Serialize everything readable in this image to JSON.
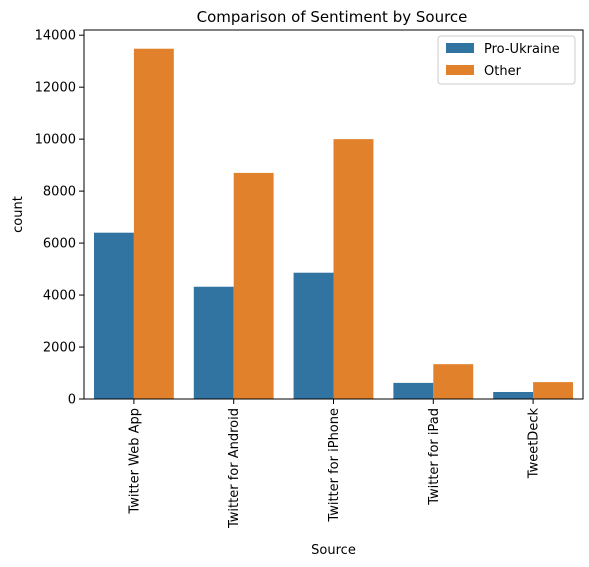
{
  "chart_data": {
    "type": "bar",
    "title": "Comparison of Sentiment by Source",
    "xlabel": "Source",
    "ylabel": "count",
    "categories": [
      "Twitter Web App",
      "Twitter for Android",
      "Twitter for iPhone",
      "Twitter for iPad",
      "TweetDeck"
    ],
    "series": [
      {
        "name": "Pro-Ukraine",
        "color": "#3274a1",
        "values": [
          6400,
          4320,
          4860,
          620,
          270
        ]
      },
      {
        "name": "Other",
        "color": "#e1812c",
        "values": [
          13480,
          8700,
          10000,
          1340,
          650
        ]
      }
    ],
    "ylim": [
      0,
      14200
    ],
    "yticks": [
      0,
      2000,
      4000,
      6000,
      8000,
      10000,
      12000,
      14000
    ],
    "ytick_labels": [
      "0",
      "2000",
      "4000",
      "6000",
      "8000",
      "10000",
      "12000",
      "14000"
    ],
    "grid": false,
    "legend_position": "top-right"
  }
}
